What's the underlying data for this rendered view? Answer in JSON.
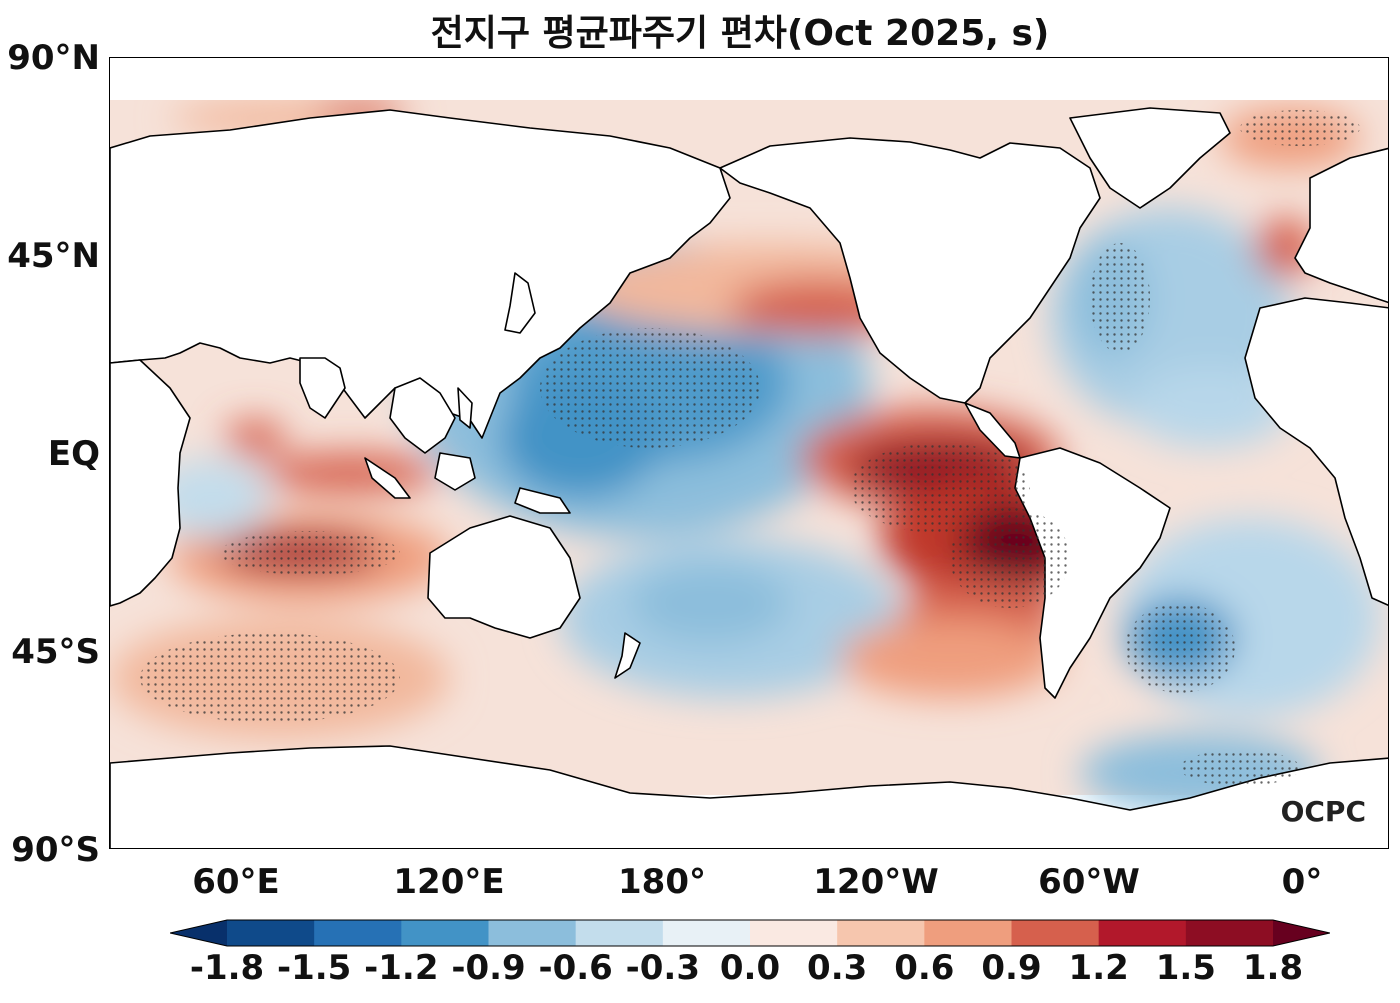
{
  "title": "전지구 평균파주기 편차(Oct 2025, s)",
  "logo_text": "OCPC",
  "lat_labels": [
    "90°N",
    "45°N",
    "EQ",
    "45°S",
    "90°S"
  ],
  "lon_labels": [
    "60°E",
    "120°E",
    "180°",
    "120°W",
    "60°W",
    "0°"
  ],
  "colorbar": {
    "labels": [
      "-1.8",
      "-1.5",
      "-1.2",
      "-0.9",
      "-0.6",
      "-0.3",
      "0.0",
      "0.3",
      "0.6",
      "0.9",
      "1.2",
      "1.5",
      "1.8"
    ],
    "levels": [
      -1.8,
      -1.5,
      -1.2,
      -0.9,
      -0.6,
      -0.3,
      0.0,
      0.3,
      0.6,
      0.9,
      1.2,
      1.5,
      1.8
    ],
    "colors": [
      "#08306b",
      "#0f4a8a",
      "#2671b5",
      "#4293c6",
      "#8cbedc",
      "#c3ddec",
      "#e8f1f6",
      "#fae9e2",
      "#f6c6ae",
      "#ef9e7e",
      "#d6604d",
      "#b2182b",
      "#8d0d23",
      "#67001f"
    ],
    "extend": "both"
  },
  "map": {
    "projection": "PlateCarree",
    "central_longitude": 200,
    "lon_range": [
      20,
      380
    ],
    "lat_range": [
      -90,
      90
    ]
  },
  "anomaly_regions": [
    {
      "name": "eastern-tropical-pacific-positive",
      "value": 1.5
    },
    {
      "name": "western-pacific-negative",
      "value": -1.0
    },
    {
      "name": "south-indian-positive",
      "value": 1.3
    },
    {
      "name": "southwest-atlantic-negative",
      "value": -1.2
    },
    {
      "name": "north-atlantic-negative",
      "value": -0.6
    },
    {
      "name": "north-pacific-positive",
      "value": 0.9
    }
  ]
}
